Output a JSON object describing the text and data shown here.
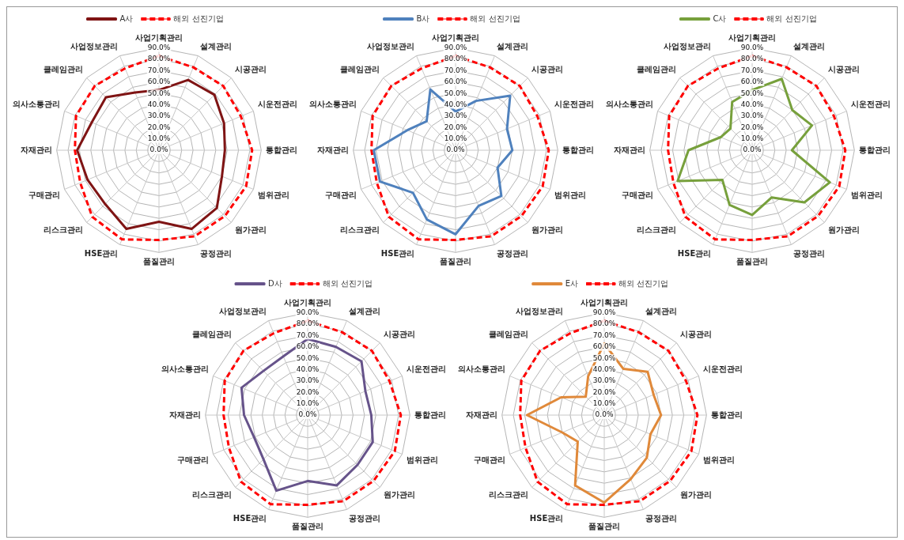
{
  "chart_data": [
    {
      "type": "radar",
      "categories": [
        "사업기획관리",
        "설계관리",
        "시공관리",
        "시운전관리",
        "통합관리",
        "범위관리",
        "원가관리",
        "공정관리",
        "품질관리",
        "HSE관리",
        "리스크관리",
        "구매관리",
        "자재관리",
        "의사소통관리",
        "클레임관리",
        "사업정보관리"
      ],
      "series": [
        {
          "name": "A사",
          "color": "#7f1414",
          "line_style": "solid",
          "values": [
            53,
            67,
            69,
            62,
            58,
            60,
            72,
            75,
            63,
            75,
            67,
            68,
            72,
            64,
            66,
            55
          ]
        },
        {
          "name": "해외 선진기업",
          "color": "#ff0000",
          "line_style": "dashed",
          "values": [
            83,
            79,
            80,
            78,
            82,
            83,
            82,
            82,
            79,
            85,
            83,
            75,
            74,
            79,
            80,
            78
          ]
        }
      ],
      "ylim": [
        0,
        90
      ],
      "yticks": [
        {
          "value": 0,
          "label": "0.0%"
        },
        {
          "value": 10,
          "label": "10.0%"
        },
        {
          "value": 20,
          "label": "20.0%"
        },
        {
          "value": 30,
          "label": "30.0%"
        },
        {
          "value": 40,
          "label": "40.0%"
        },
        {
          "value": 50,
          "label": "50.0%"
        },
        {
          "value": 60,
          "label": "60.0%"
        },
        {
          "value": 70,
          "label": "70.0%"
        },
        {
          "value": 80,
          "label": "80.0%"
        },
        {
          "value": 90,
          "label": "90.0%"
        }
      ],
      "grid": true,
      "legend": "top",
      "marker": "none"
    },
    {
      "type": "radar",
      "categories": [
        "사업기획관리",
        "설계관리",
        "시공관리",
        "시운전관리",
        "통합관리",
        "범위관리",
        "원가관리",
        "공정관리",
        "품질관리",
        "HSE관리",
        "리스크관리",
        "구매관리",
        "자재관리",
        "의사소통관리",
        "클레임관리",
        "사업정보관리"
      ],
      "series": [
        {
          "name": "B사",
          "color": "#4f81bd",
          "line_style": "solid",
          "values": [
            34,
            47,
            68,
            49,
            50,
            40,
            57,
            53,
            74,
            66,
            53,
            72,
            72,
            46,
            36,
            58
          ]
        },
        {
          "name": "해외 선진기업",
          "color": "#ff0000",
          "line_style": "dashed",
          "values": [
            83,
            79,
            80,
            78,
            82,
            83,
            82,
            82,
            79,
            85,
            83,
            75,
            74,
            79,
            80,
            78
          ]
        }
      ],
      "ylim": [
        0,
        90
      ],
      "yticks": [
        {
          "value": 0,
          "label": "0.0%"
        },
        {
          "value": 10,
          "label": "10.0%"
        },
        {
          "value": 20,
          "label": "20.0%"
        },
        {
          "value": 30,
          "label": "30.0%"
        },
        {
          "value": 40,
          "label": "40.0%"
        },
        {
          "value": 50,
          "label": "50.0%"
        },
        {
          "value": 60,
          "label": "60.0%"
        },
        {
          "value": 70,
          "label": "70.0%"
        },
        {
          "value": 80,
          "label": "80.0%"
        },
        {
          "value": 90,
          "label": "90.0%"
        }
      ],
      "grid": true,
      "legend": "top",
      "marker": "none"
    },
    {
      "type": "radar",
      "categories": [
        "사업기획관리",
        "설계관리",
        "시공관리",
        "시운전관리",
        "통합관리",
        "범위관리",
        "원가관리",
        "공정관리",
        "품질관리",
        "HSE관리",
        "리스크관리",
        "구매관리",
        "자재관리",
        "의사소통관리",
        "클레임관리",
        "사업정보관리"
      ],
      "series": [
        {
          "name": "C사",
          "color": "#77a03c",
          "line_style": "solid",
          "values": [
            53,
            68,
            50,
            57,
            35,
            74,
            65,
            45,
            57,
            52,
            37,
            71,
            56,
            30,
            27,
            46
          ]
        },
        {
          "name": "해외 선진기업",
          "color": "#ff0000",
          "line_style": "dashed",
          "values": [
            83,
            79,
            80,
            78,
            82,
            83,
            82,
            82,
            79,
            85,
            83,
            75,
            74,
            79,
            80,
            78
          ]
        }
      ],
      "ylim": [
        0,
        90
      ],
      "yticks": [
        {
          "value": 0,
          "label": "0.0%"
        },
        {
          "value": 10,
          "label": "10.0%"
        },
        {
          "value": 20,
          "label": "20.0%"
        },
        {
          "value": 30,
          "label": "30.0%"
        },
        {
          "value": 40,
          "label": "40.0%"
        },
        {
          "value": 50,
          "label": "50.0%"
        },
        {
          "value": 60,
          "label": "60.0%"
        },
        {
          "value": 70,
          "label": "70.0%"
        },
        {
          "value": 80,
          "label": "80.0%"
        },
        {
          "value": 90,
          "label": "90.0%"
        }
      ],
      "grid": true,
      "legend": "top",
      "marker": "none"
    },
    {
      "type": "radar",
      "categories": [
        "사업기획관리",
        "설계관리",
        "시공관리",
        "시운전관리",
        "통합관리",
        "범위관리",
        "원가관리",
        "공정관리",
        "품질관리",
        "HSE관리",
        "리스크관리",
        "구매관리",
        "자재관리",
        "의사소통관리",
        "클레임관리",
        "사업정보관리"
      ],
      "series": [
        {
          "name": "D사",
          "color": "#66538a",
          "line_style": "solid",
          "values": [
            67,
            65,
            67,
            55,
            56,
            62,
            62,
            67,
            58,
            72,
            55,
            51,
            56,
            63,
            55,
            56
          ]
        },
        {
          "name": "해외 선진기업",
          "color": "#ff0000",
          "line_style": "dashed",
          "values": [
            83,
            79,
            80,
            78,
            82,
            83,
            82,
            82,
            79,
            85,
            83,
            75,
            74,
            79,
            80,
            78
          ]
        }
      ],
      "ylim": [
        0,
        90
      ],
      "yticks": [
        {
          "value": 0,
          "label": "0.0%"
        },
        {
          "value": 10,
          "label": "10.0%"
        },
        {
          "value": 20,
          "label": "20.0%"
        },
        {
          "value": 30,
          "label": "30.0%"
        },
        {
          "value": 40,
          "label": "40.0%"
        },
        {
          "value": 50,
          "label": "50.0%"
        },
        {
          "value": 60,
          "label": "60.0%"
        },
        {
          "value": 70,
          "label": "70.0%"
        },
        {
          "value": 80,
          "label": "80.0%"
        },
        {
          "value": 90,
          "label": "90.0%"
        }
      ],
      "grid": true,
      "legend": "top",
      "marker": "none"
    },
    {
      "type": "radar",
      "categories": [
        "사업기획관리",
        "설계관리",
        "시공관리",
        "시운전관리",
        "통합관리",
        "범위관리",
        "원가관리",
        "공정관리",
        "품질관리",
        "HSE관리",
        "리스크관리",
        "구매관리",
        "자재관리",
        "의사소통관리",
        "클레임관리",
        "사업정보관리"
      ],
      "series": [
        {
          "name": "E사",
          "color": "#e0893a",
          "line_style": "solid",
          "values": [
            63,
            44,
            54,
            47,
            50,
            44,
            53,
            61,
            77,
            67,
            33,
            40,
            68,
            41,
            23,
            37
          ]
        },
        {
          "name": "해외 선진기업",
          "color": "#ff0000",
          "line_style": "dashed",
          "values": [
            83,
            79,
            80,
            78,
            82,
            83,
            82,
            82,
            79,
            85,
            83,
            75,
            74,
            79,
            80,
            78
          ]
        }
      ],
      "ylim": [
        0,
        90
      ],
      "yticks": [
        {
          "value": 0,
          "label": "0.0%"
        },
        {
          "value": 10,
          "label": "10.0%"
        },
        {
          "value": 20,
          "label": "20.0%"
        },
        {
          "value": 30,
          "label": "30.0%"
        },
        {
          "value": 40,
          "label": "40.0%"
        },
        {
          "value": 50,
          "label": "50.0%"
        },
        {
          "value": 60,
          "label": "60.0%"
        },
        {
          "value": 70,
          "label": "70.0%"
        },
        {
          "value": 80,
          "label": "80.0%"
        },
        {
          "value": 90,
          "label": "90.0%"
        }
      ],
      "grid": true,
      "legend": "top",
      "marker": "none"
    }
  ]
}
